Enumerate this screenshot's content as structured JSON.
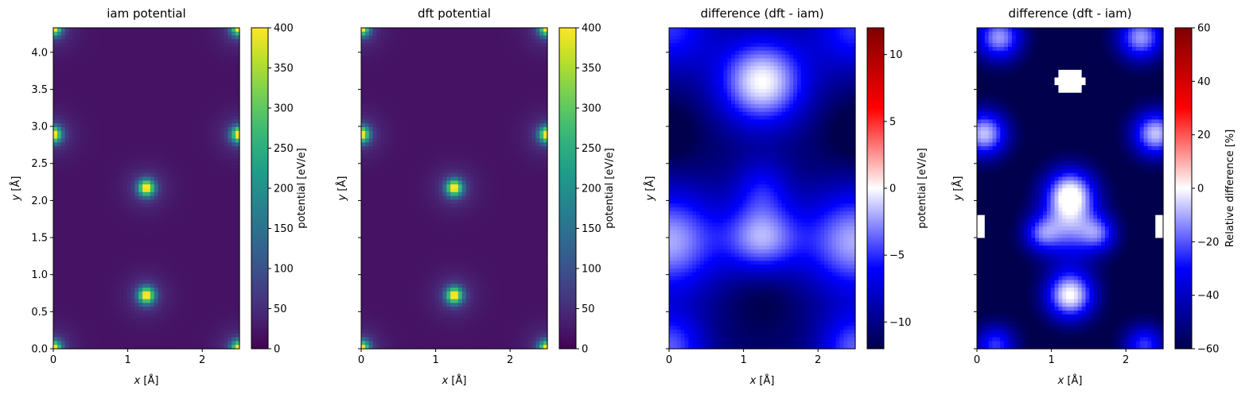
{
  "chart_data": [
    {
      "type": "heatmap",
      "title": "iam potential",
      "xlabel": "x [Å]",
      "ylabel": "y [Å]",
      "xlim": [
        0,
        2.5
      ],
      "ylim": [
        0,
        4.33
      ],
      "x_ticks": [
        0,
        1,
        2
      ],
      "y_ticks": [
        0.0,
        0.5,
        1.0,
        1.5,
        2.0,
        2.5,
        3.0,
        3.5,
        4.0
      ],
      "y_ticklabels_visible": true,
      "colormap": "viridis",
      "colorbar": {
        "label": "potential [eV/e]",
        "range": [
          0,
          400
        ],
        "ticks": [
          0,
          50,
          100,
          150,
          200,
          250,
          300,
          350,
          400
        ]
      },
      "peaks": [
        {
          "x": 0.0,
          "y": 0.0,
          "value": 400
        },
        {
          "x": 2.5,
          "y": 0.0,
          "value": 400
        },
        {
          "x": 0.0,
          "y": 4.33,
          "value": 400
        },
        {
          "x": 2.5,
          "y": 4.33,
          "value": 400
        },
        {
          "x": 1.25,
          "y": 0.72,
          "value": 400
        },
        {
          "x": 1.25,
          "y": 2.17,
          "value": 400
        },
        {
          "x": 0.0,
          "y": 2.89,
          "value": 400
        },
        {
          "x": 2.5,
          "y": 2.89,
          "value": 400
        }
      ]
    },
    {
      "type": "heatmap",
      "title": "dft potential",
      "xlabel": "x [Å]",
      "ylabel": "y [Å]",
      "xlim": [
        0,
        2.5
      ],
      "ylim": [
        0,
        4.33
      ],
      "x_ticks": [
        0,
        1,
        2
      ],
      "y_ticks": [
        0.0,
        0.5,
        1.0,
        1.5,
        2.0,
        2.5,
        3.0,
        3.5,
        4.0
      ],
      "y_ticklabels_visible": false,
      "colormap": "viridis",
      "colorbar": {
        "label": "potential [eV/e]",
        "range": [
          0,
          400
        ],
        "ticks": [
          0,
          50,
          100,
          150,
          200,
          250,
          300,
          350,
          400
        ]
      },
      "peaks": [
        {
          "x": 0.0,
          "y": 0.0,
          "value": 400
        },
        {
          "x": 2.5,
          "y": 0.0,
          "value": 400
        },
        {
          "x": 0.0,
          "y": 4.33,
          "value": 400
        },
        {
          "x": 2.5,
          "y": 4.33,
          "value": 400
        },
        {
          "x": 1.25,
          "y": 0.72,
          "value": 400
        },
        {
          "x": 1.25,
          "y": 2.17,
          "value": 400
        },
        {
          "x": 0.0,
          "y": 2.89,
          "value": 400
        },
        {
          "x": 2.5,
          "y": 2.89,
          "value": 400
        }
      ]
    },
    {
      "type": "heatmap",
      "title": "difference (dft - iam)",
      "xlabel": "x [Å]",
      "ylabel": "y [Å]",
      "xlim": [
        0,
        2.5
      ],
      "ylim": [
        0,
        4.33
      ],
      "x_ticks": [
        0,
        1,
        2
      ],
      "y_ticks": [
        0.0,
        0.5,
        1.0,
        1.5,
        2.0,
        2.5,
        3.0,
        3.5,
        4.0
      ],
      "y_ticklabels_visible": false,
      "colormap": "seismic",
      "colorbar": {
        "label": "potential [eV/e]",
        "range": [
          -12,
          12
        ],
        "ticks": [
          -10,
          -5,
          0,
          5,
          10
        ],
        "ticklabels": [
          "−10",
          "−5",
          "0",
          "5",
          "10"
        ]
      },
      "value_range_shown": [
        -12,
        0
      ]
    },
    {
      "type": "heatmap",
      "title": "difference (dft - iam)",
      "xlabel": "x [Å]",
      "ylabel": "y [Å]",
      "xlim": [
        0,
        2.5
      ],
      "ylim": [
        0,
        4.33
      ],
      "x_ticks": [
        0,
        1,
        2
      ],
      "y_ticks": [
        0.0,
        0.5,
        1.0,
        1.5,
        2.0,
        2.5,
        3.0,
        3.5,
        4.0
      ],
      "y_ticklabels_visible": false,
      "colormap": "seismic",
      "colorbar": {
        "label": "Relative difference [%]",
        "range": [
          -60,
          60
        ],
        "ticks": [
          -60,
          -40,
          -20,
          0,
          20,
          40,
          60
        ],
        "ticklabels": [
          "−60",
          "−40",
          "−20",
          "0",
          "20",
          "40",
          "60"
        ]
      },
      "value_range_shown": [
        -60,
        0
      ],
      "masked_regions": "white (NaN) patches near atomic sites"
    }
  ]
}
